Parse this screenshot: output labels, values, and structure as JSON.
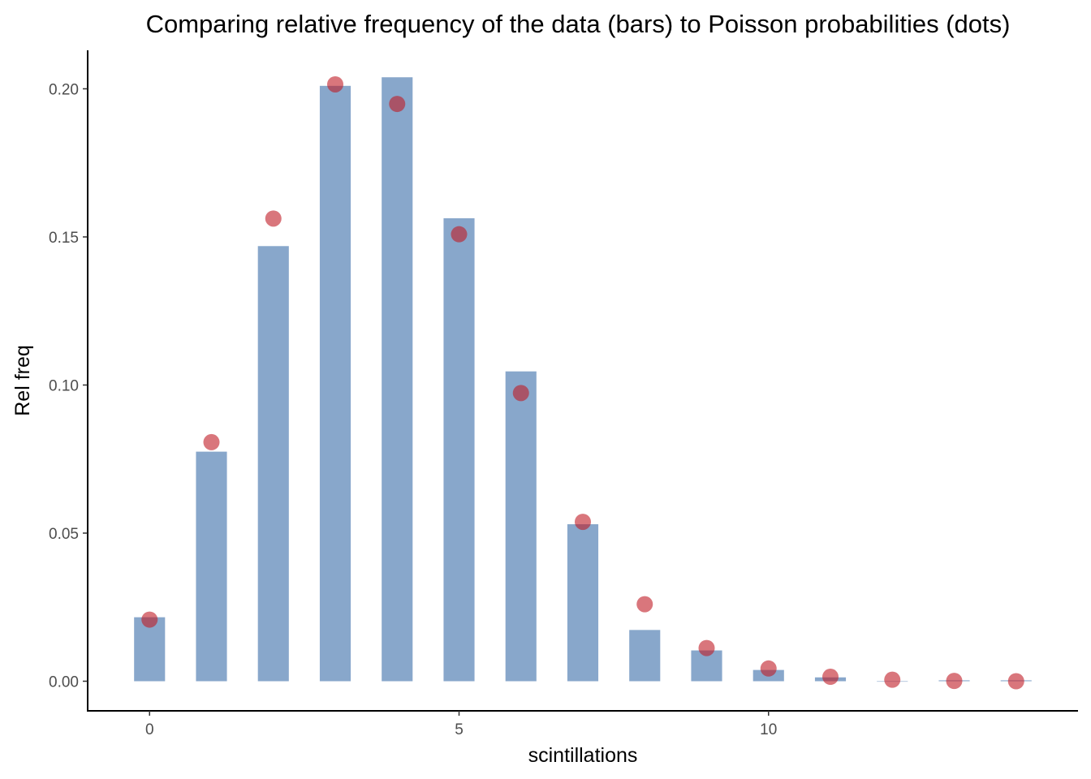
{
  "chart_data": {
    "type": "bar",
    "title": "Comparing relative frequency of the data (bars) to Poisson probabilities (dots)",
    "xlabel": "scintillations",
    "ylabel": "Rel freq",
    "x": [
      0,
      1,
      2,
      3,
      4,
      5,
      6,
      7,
      8,
      9,
      10,
      11,
      12,
      13,
      14
    ],
    "xlim": [
      -1,
      15
    ],
    "ylim": [
      -0.01,
      0.213
    ],
    "x_ticks": [
      0,
      5,
      10
    ],
    "y_ticks": [
      0.0,
      0.05,
      0.1,
      0.15,
      0.2
    ],
    "x_tick_labels": [
      "0",
      "5",
      "10"
    ],
    "y_tick_labels": [
      "0.00",
      "0.05",
      "0.10",
      "0.15",
      "0.20"
    ],
    "grid": false,
    "series": [
      {
        "kind": "bar",
        "color": "#6a91be",
        "values": [
          0.0216,
          0.0775,
          0.1469,
          0.201,
          0.2039,
          0.1563,
          0.1046,
          0.053,
          0.0173,
          0.0104,
          0.0038,
          0.0013,
          0.0,
          0.0003,
          0.0003
        ]
      },
      {
        "kind": "point",
        "color": "#c01a25",
        "values": [
          0.0208,
          0.0807,
          0.1562,
          0.2015,
          0.1949,
          0.1509,
          0.0973,
          0.0538,
          0.026,
          0.0112,
          0.0043,
          0.0015,
          0.0005,
          0.0001,
          0.0
        ]
      }
    ]
  }
}
